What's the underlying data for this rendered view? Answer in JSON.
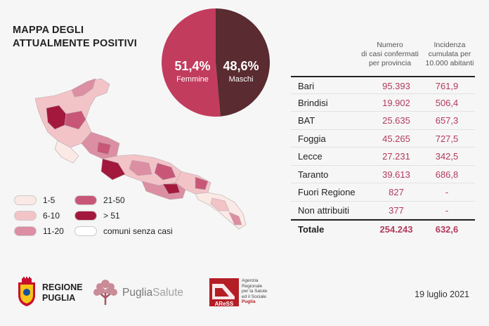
{
  "title": [
    "MAPPA DEGLI",
    "ATTUALMENTE POSITIVI"
  ],
  "pie": {
    "female_pct": "51,4%",
    "female_label": "Femmine",
    "male_pct": "48,6%",
    "male_label": "Maschi",
    "female_color": "#c23c5e",
    "male_color": "#5a2b30"
  },
  "legend": [
    {
      "label": "1-5",
      "color": "#fbe9e6"
    },
    {
      "label": "6-10",
      "color": "#f2c4c8"
    },
    {
      "label": "11-20",
      "color": "#dc8ea2"
    },
    {
      "label": "21-50",
      "color": "#c85777"
    },
    {
      "label": "> 51",
      "color": "#a3193e"
    },
    {
      "label": "comuni senza casi",
      "color": "#ffffff"
    }
  ],
  "table": {
    "header_cases": [
      "Numero",
      "di casi confermati",
      "per provincia"
    ],
    "header_incidence": [
      "Incidenza",
      "cumulata per",
      "10.000 abitanti"
    ],
    "rows": [
      {
        "name": "Bari",
        "cases": "95.393",
        "incidence": "761,9"
      },
      {
        "name": "Brindisi",
        "cases": "19.902",
        "incidence": "506,4"
      },
      {
        "name": "BAT",
        "cases": "25.635",
        "incidence": "657,3"
      },
      {
        "name": "Foggia",
        "cases": "45.265",
        "incidence": "727,5"
      },
      {
        "name": "Lecce",
        "cases": "27.231",
        "incidence": "342,5"
      },
      {
        "name": "Taranto",
        "cases": "39.613",
        "incidence": "686,8"
      },
      {
        "name": "Fuori Regione",
        "cases": "827",
        "incidence": "-"
      },
      {
        "name": "Non attribuiti",
        "cases": "377",
        "incidence": "-"
      }
    ],
    "total": {
      "name": "Totale",
      "cases": "254.243",
      "incidence": "632,6"
    }
  },
  "footer": {
    "region": [
      "REGIONE",
      "PUGLIA"
    ],
    "puglia_salute_1": "Puglia",
    "puglia_salute_2": "Salute",
    "ares_name": "AReSS",
    "ares_desc": [
      "Agenzia",
      "Regionale",
      "per la Salute",
      "ed il Sociale"
    ],
    "ares_desc_accent": "Puglia",
    "date": "19 luglio 2021"
  },
  "colors": {
    "accent": "#b23a5c",
    "dark": "#5a2b30"
  }
}
